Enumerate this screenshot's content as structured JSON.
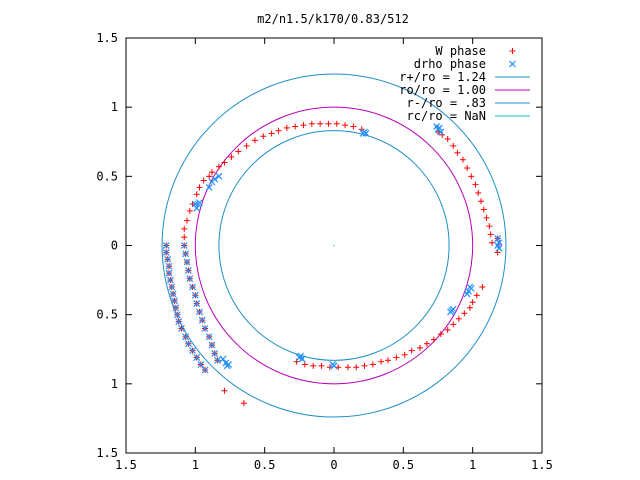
{
  "chart_data": {
    "type": "scatter",
    "title": "m2/n1.5/k170/0.83/512",
    "xlabel": "",
    "ylabel": "",
    "xlim": [
      -1.5,
      1.5
    ],
    "ylim": [
      -1.5,
      1.5
    ],
    "x_ticks": [
      -1.5,
      -1,
      -0.5,
      0,
      0.5,
      1,
      1.5
    ],
    "y_ticks": [
      -1.5,
      -1,
      -0.5,
      0,
      0.5,
      1,
      1.5
    ],
    "x_tick_labels": [
      "1.5",
      "1",
      "0.5",
      "0",
      "0.5",
      "1",
      "1.5"
    ],
    "y_tick_labels": [
      "1.5",
      "1",
      "0.5",
      "0",
      "0.5",
      "1",
      "1.5"
    ],
    "grid": false,
    "legend_position": "top-right",
    "series": [
      {
        "name": "W phase",
        "kind": "points",
        "marker": "plus",
        "color": "#ff0000",
        "points": [
          [
            -1.21,
            0.0
          ],
          [
            -1.21,
            -0.05
          ],
          [
            -1.2,
            -0.1
          ],
          [
            -1.19,
            -0.15
          ],
          [
            -1.19,
            -0.2
          ],
          [
            -1.18,
            -0.25
          ],
          [
            -1.17,
            -0.3
          ],
          [
            -1.16,
            -0.35
          ],
          [
            -1.15,
            -0.4
          ],
          [
            -1.14,
            -0.45
          ],
          [
            -1.13,
            -0.5
          ],
          [
            -1.12,
            -0.55
          ],
          [
            -1.1,
            -0.6
          ],
          [
            -1.07,
            -0.66
          ],
          [
            -1.05,
            -0.71
          ],
          [
            -1.02,
            -0.76
          ],
          [
            -0.99,
            -0.81
          ],
          [
            -0.96,
            -0.86
          ],
          [
            -0.93,
            -0.9
          ],
          [
            -1.08,
            0.0
          ],
          [
            -1.07,
            -0.06
          ],
          [
            -1.06,
            -0.12
          ],
          [
            -1.05,
            -0.18
          ],
          [
            -1.04,
            -0.24
          ],
          [
            -1.02,
            -0.3
          ],
          [
            -1.0,
            -0.36
          ],
          [
            -0.99,
            -0.42
          ],
          [
            -0.97,
            -0.48
          ],
          [
            -0.95,
            -0.54
          ],
          [
            -0.93,
            -0.6
          ],
          [
            -0.9,
            -0.66
          ],
          [
            -0.88,
            -0.72
          ],
          [
            -0.86,
            -0.78
          ],
          [
            -0.84,
            -0.83
          ],
          [
            -1.08,
            0.06
          ],
          [
            -1.08,
            0.12
          ],
          [
            -1.06,
            0.18
          ],
          [
            -1.04,
            0.25
          ],
          [
            -1.02,
            0.3
          ],
          [
            -0.99,
            0.37
          ],
          [
            -0.97,
            0.42
          ],
          [
            -0.94,
            0.47
          ],
          [
            -0.9,
            0.5
          ],
          [
            -0.88,
            0.53
          ],
          [
            -0.83,
            0.57
          ],
          [
            -0.79,
            0.6
          ],
          [
            -0.74,
            0.64
          ],
          [
            -0.69,
            0.68
          ],
          [
            -0.63,
            0.72
          ],
          [
            -0.57,
            0.76
          ],
          [
            -0.51,
            0.79
          ],
          [
            -0.45,
            0.81
          ],
          [
            -0.4,
            0.83
          ],
          [
            -0.34,
            0.85
          ],
          [
            -0.28,
            0.86
          ],
          [
            -0.22,
            0.87
          ],
          [
            -0.16,
            0.88
          ],
          [
            -0.1,
            0.88
          ],
          [
            -0.04,
            0.88
          ],
          [
            0.02,
            0.88
          ],
          [
            0.08,
            0.87
          ],
          [
            0.14,
            0.86
          ],
          [
            0.2,
            0.84
          ],
          [
            0.75,
            0.82
          ],
          [
            0.78,
            0.8
          ],
          [
            0.82,
            0.77
          ],
          [
            0.86,
            0.72
          ],
          [
            0.89,
            0.67
          ],
          [
            0.93,
            0.62
          ],
          [
            0.96,
            0.56
          ],
          [
            0.99,
            0.5
          ],
          [
            1.02,
            0.44
          ],
          [
            1.04,
            0.38
          ],
          [
            1.06,
            0.32
          ],
          [
            1.08,
            0.26
          ],
          [
            1.1,
            0.2
          ],
          [
            1.12,
            0.14
          ],
          [
            1.13,
            0.08
          ],
          [
            1.14,
            0.02
          ],
          [
            1.18,
            0.05
          ],
          [
            1.18,
            -0.05
          ],
          [
            1.19,
            0.01
          ],
          [
            1.07,
            -0.3
          ],
          [
            1.03,
            -0.36
          ],
          [
            1.0,
            -0.41
          ],
          [
            0.98,
            -0.45
          ],
          [
            0.94,
            -0.49
          ],
          [
            0.9,
            -0.53
          ],
          [
            0.86,
            -0.57
          ],
          [
            0.82,
            -0.61
          ],
          [
            0.77,
            -0.64
          ],
          [
            0.72,
            -0.68
          ],
          [
            0.67,
            -0.71
          ],
          [
            0.62,
            -0.74
          ],
          [
            0.56,
            -0.76
          ],
          [
            0.51,
            -0.79
          ],
          [
            0.45,
            -0.81
          ],
          [
            0.39,
            -0.83
          ],
          [
            0.34,
            -0.84
          ],
          [
            0.28,
            -0.86
          ],
          [
            0.22,
            -0.87
          ],
          [
            0.16,
            -0.88
          ],
          [
            0.1,
            -0.88
          ],
          [
            0.03,
            -0.88
          ],
          [
            -0.03,
            -0.88
          ],
          [
            -0.09,
            -0.87
          ],
          [
            -0.15,
            -0.87
          ],
          [
            -0.21,
            -0.86
          ],
          [
            -0.27,
            -0.84
          ],
          [
            -0.79,
            -1.05
          ],
          [
            -0.65,
            -1.14
          ]
        ]
      },
      {
        "name": "drho phase",
        "kind": "points",
        "marker": "x",
        "color": "#1e90ff",
        "points": [
          [
            -1.21,
            0.0
          ],
          [
            -1.21,
            -0.05
          ],
          [
            -1.2,
            -0.1
          ],
          [
            -1.19,
            -0.15
          ],
          [
            -1.19,
            -0.2
          ],
          [
            -1.18,
            -0.25
          ],
          [
            -1.17,
            -0.3
          ],
          [
            -1.16,
            -0.35
          ],
          [
            -1.15,
            -0.4
          ],
          [
            -1.14,
            -0.45
          ],
          [
            -1.13,
            -0.5
          ],
          [
            -1.12,
            -0.55
          ],
          [
            -1.1,
            -0.6
          ],
          [
            -1.07,
            -0.66
          ],
          [
            -1.05,
            -0.71
          ],
          [
            -1.02,
            -0.76
          ],
          [
            -0.99,
            -0.81
          ],
          [
            -0.96,
            -0.86
          ],
          [
            -0.93,
            -0.9
          ],
          [
            -1.08,
            0.0
          ],
          [
            -1.07,
            -0.06
          ],
          [
            -1.06,
            -0.12
          ],
          [
            -1.05,
            -0.18
          ],
          [
            -1.04,
            -0.24
          ],
          [
            -1.02,
            -0.3
          ],
          [
            -1.0,
            -0.36
          ],
          [
            -0.99,
            -0.42
          ],
          [
            -0.97,
            -0.48
          ],
          [
            -0.95,
            -0.54
          ],
          [
            -0.93,
            -0.6
          ],
          [
            -0.9,
            -0.66
          ],
          [
            -0.88,
            -0.72
          ],
          [
            -0.86,
            -0.78
          ],
          [
            -0.84,
            -0.83
          ],
          [
            -1.0,
            0.3
          ],
          [
            -0.99,
            0.27
          ],
          [
            -0.97,
            0.31
          ],
          [
            -0.98,
            0.3
          ],
          [
            -0.9,
            0.42
          ],
          [
            -0.88,
            0.46
          ],
          [
            -0.86,
            0.48
          ],
          [
            -0.83,
            0.5
          ],
          [
            0.22,
            0.82
          ],
          [
            0.21,
            0.81
          ],
          [
            0.23,
            0.81
          ],
          [
            0.75,
            0.84
          ],
          [
            0.76,
            0.85
          ],
          [
            0.74,
            0.86
          ],
          [
            0.77,
            0.82
          ],
          [
            1.18,
            0.05
          ],
          [
            1.18,
            0.0
          ],
          [
            1.19,
            -0.02
          ],
          [
            1.19,
            0.02
          ],
          [
            0.98,
            -0.3
          ],
          [
            0.99,
            -0.31
          ],
          [
            0.97,
            -0.33
          ],
          [
            0.96,
            -0.35
          ],
          [
            0.85,
            -0.47
          ],
          [
            0.84,
            -0.48
          ],
          [
            0.86,
            -0.46
          ],
          [
            -0.25,
            -0.81
          ],
          [
            -0.23,
            -0.82
          ],
          [
            -0.24,
            -0.8
          ],
          [
            0.0,
            -0.87
          ],
          [
            -0.01,
            -0.86
          ],
          [
            -0.8,
            -0.82
          ],
          [
            -0.78,
            -0.85
          ],
          [
            -0.77,
            -0.87
          ],
          [
            -0.76,
            -0.86
          ]
        ]
      },
      {
        "name": "r+/ro = 1.24",
        "kind": "circle",
        "radius": 1.24,
        "color": "#1f8fc9"
      },
      {
        "name": "ro/ro = 1.00",
        "kind": "circle",
        "radius": 1.0,
        "color": "#b800b8"
      },
      {
        "name": "r-/ro = .83",
        "kind": "circle",
        "radius": 0.83,
        "color": "#1f8fc9"
      },
      {
        "name": "rc/ro = NaN",
        "kind": "circle",
        "radius": null,
        "color": "#00c8c8"
      }
    ]
  }
}
